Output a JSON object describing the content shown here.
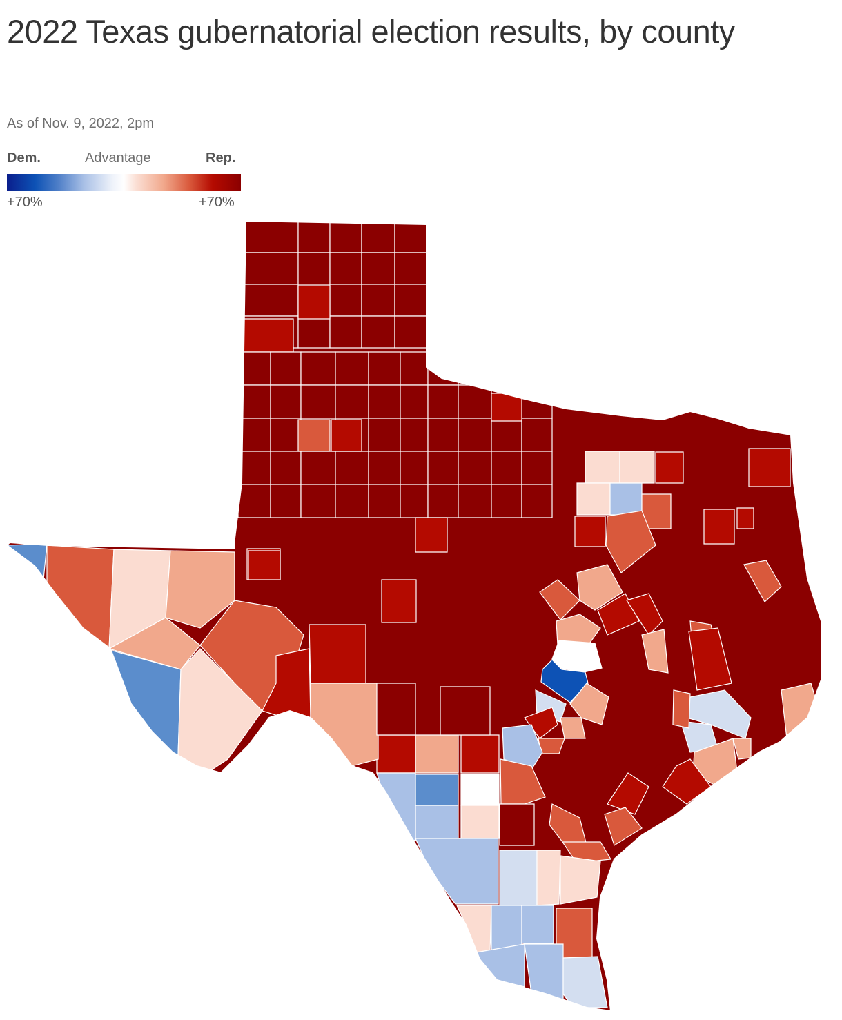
{
  "title": "2022 Texas gubernatorial election results, by county",
  "subtitle": "As of Nov. 9, 2022, 2pm",
  "legend": {
    "left_label": "Dem.",
    "center_label": "Advantage",
    "right_label": "Rep.",
    "min_label": "+70%",
    "max_label": "+70%"
  },
  "colors": {
    "rep_max": "#8b0000",
    "rep_strong": "#b40a00",
    "rep_mid": "#d9593c",
    "rep_light": "#f1a88c",
    "rep_faint": "#fbdcd1",
    "neutral": "#ffffff",
    "dem_faint": "#d3def0",
    "dem_light": "#a9c0e6",
    "dem_mid": "#5b8dcc",
    "dem_strong": "#0d52b5",
    "border": "#ffffff"
  }
}
